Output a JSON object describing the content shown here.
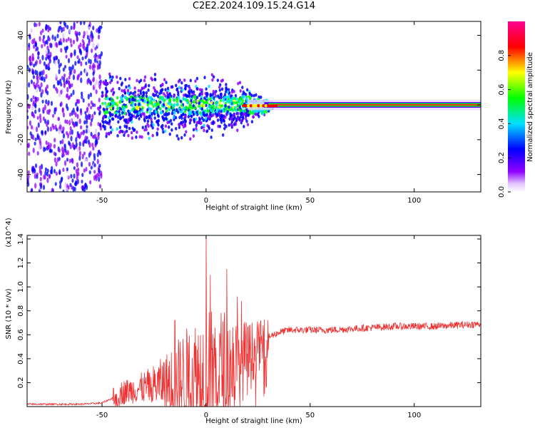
{
  "title": "C2E2.2024.109.15.24.G14",
  "colors": {
    "snr_line": "#f03030",
    "spectrogram_background": "#ffffff"
  },
  "chart_data": [
    {
      "type": "heatmap",
      "xlabel": "Height of straight line (km)",
      "ylabel": "Frequency (Hz)",
      "xlim": [
        -86,
        132
      ],
      "ylim": [
        -50,
        48
      ],
      "xticks": [
        -50,
        0,
        50,
        100
      ],
      "yticks": [
        -40,
        -20,
        0,
        20,
        40
      ],
      "colormap": "rainbow (white-purple-blue-cyan-green-yellow-red-magenta)",
      "colorbar": {
        "label": "Normalized spectral amplitude",
        "range": [
          0.0,
          1.0
        ],
        "ticks": [
          "0.0",
          "0.2",
          "0.4",
          "0.6",
          "0.8"
        ]
      },
      "features": [
        {
          "x_range": [
            -86,
            -50
          ],
          "description": "broadband noise, amplitude ~0.1-0.3"
        },
        {
          "x_range": [
            -50,
            30
          ],
          "freq_spread_hz": 15,
          "amplitude": "0.2-0.6"
        },
        {
          "x_range": [
            20,
            132
          ],
          "freq_hz": 0,
          "amplitude": "0.8-1.0"
        }
      ]
    },
    {
      "type": "line",
      "xlabel": "Height of straight line (km)",
      "ylabel": "SNR (10 * v/v)",
      "y_multiplier": "(x10^4)",
      "xlim": [
        -86,
        132
      ],
      "ylim": [
        0,
        1.43
      ],
      "xticks": [
        -50,
        0,
        50,
        100
      ],
      "yticks": [
        0.2,
        0.4,
        0.6,
        0.8,
        1.0,
        1.2,
        1.4
      ],
      "series": [
        {
          "x": [
            -86,
            -60,
            -50,
            -45,
            -40,
            -35,
            -30,
            -25,
            -20,
            -15,
            -10,
            -5,
            0,
            5,
            10,
            15,
            20,
            25,
            30,
            35,
            40,
            50,
            60,
            70,
            80,
            90,
            100,
            110,
            120,
            132
          ],
          "y": [
            0.02,
            0.02,
            0.03,
            0.07,
            0.12,
            0.14,
            0.16,
            0.18,
            0.2,
            0.22,
            0.24,
            0.26,
            0.28,
            0.3,
            0.33,
            0.36,
            0.42,
            0.5,
            0.58,
            0.62,
            0.64,
            0.64,
            0.64,
            0.65,
            0.66,
            0.67,
            0.67,
            0.67,
            0.68,
            0.69
          ],
          "peaks": [
            {
              "x": 0,
              "y": 1.42
            },
            {
              "x": 2,
              "y": 1.1
            },
            {
              "x": 10,
              "y": 1.15
            },
            {
              "x": -15,
              "y": 0.72
            },
            {
              "x": 15,
              "y": 0.92
            },
            {
              "x": 17,
              "y": 0.88
            }
          ]
        }
      ]
    }
  ]
}
